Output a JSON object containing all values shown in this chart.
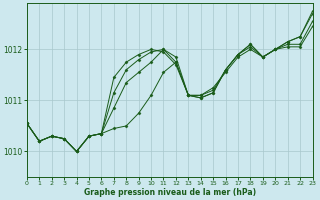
{
  "bg_color": "#cde8ee",
  "grid_color": "#a8c8cc",
  "line_color": "#1a5c1a",
  "marker_color": "#1a5c1a",
  "xlabel": "Graphe pression niveau de la mer (hPa)",
  "xlim": [
    0,
    23
  ],
  "ylim": [
    1009.5,
    1012.9
  ],
  "yticks": [
    1010,
    1011,
    1012
  ],
  "xticks": [
    0,
    1,
    2,
    3,
    4,
    5,
    6,
    7,
    8,
    9,
    10,
    11,
    12,
    13,
    14,
    15,
    16,
    17,
    18,
    19,
    20,
    21,
    22,
    23
  ],
  "series": [
    [
      1010.55,
      1010.2,
      1010.3,
      1010.25,
      1010.0,
      1010.3,
      1010.35,
      1010.45,
      1010.5,
      1010.75,
      1011.1,
      1011.55,
      1011.75,
      1011.1,
      1011.1,
      1011.25,
      1011.55,
      1011.85,
      1012.0,
      1011.85,
      1012.0,
      1012.05,
      1012.05,
      1012.45
    ],
    [
      1010.55,
      1010.2,
      1010.3,
      1010.25,
      1010.0,
      1010.3,
      1010.35,
      1010.85,
      1011.35,
      1011.55,
      1011.75,
      1012.0,
      1011.85,
      1011.1,
      1011.1,
      1011.2,
      1011.6,
      1011.9,
      1012.05,
      1011.85,
      1012.0,
      1012.1,
      1012.1,
      1012.55
    ],
    [
      1010.55,
      1010.2,
      1010.3,
      1010.25,
      1010.0,
      1010.3,
      1010.35,
      1011.15,
      1011.6,
      1011.8,
      1011.95,
      1012.0,
      1011.75,
      1011.1,
      1011.05,
      1011.15,
      1011.6,
      1011.9,
      1012.1,
      1011.85,
      1012.0,
      1012.15,
      1012.25,
      1012.7
    ],
    [
      1010.55,
      1010.2,
      1010.3,
      1010.25,
      1010.0,
      1010.3,
      1010.35,
      1011.45,
      1011.75,
      1011.9,
      1012.0,
      1011.95,
      1011.7,
      1011.1,
      1011.05,
      1011.15,
      1011.6,
      1011.9,
      1012.1,
      1011.85,
      1012.0,
      1012.15,
      1012.25,
      1012.75
    ]
  ]
}
